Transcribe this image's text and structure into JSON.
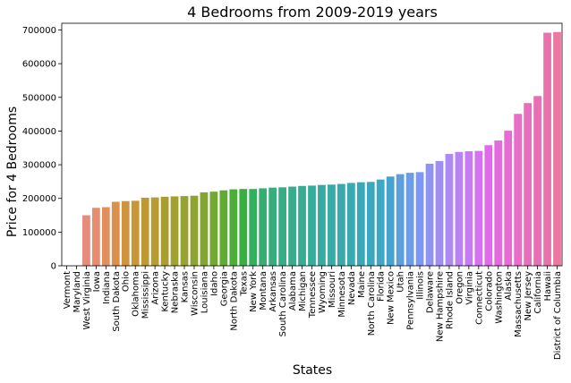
{
  "chart_data": {
    "type": "bar",
    "title": "4 Bedrooms from 2009-2019 years",
    "xlabel": "States",
    "ylabel": "Price for 4 Bedrooms",
    "ylim": [
      0,
      720000
    ],
    "yticks": [
      "0",
      "100000",
      "200000",
      "300000",
      "400000",
      "500000",
      "600000",
      "700000"
    ],
    "grid": false,
    "legend": "none",
    "categories": [
      "Vermont",
      "Maryland",
      "West Virginia",
      "Iowa",
      "Indiana",
      "South Dakota",
      "Ohio",
      "Oklahoma",
      "Mississippi",
      "Arizona",
      "Kentucky",
      "Nebraska",
      "Kansas",
      "Wisconsin",
      "Louisiana",
      "Idaho",
      "Georgia",
      "North Dakota",
      "Texas",
      "New York",
      "Montana",
      "Arkansas",
      "South Carolina",
      "Alabama",
      "Michigan",
      "Tennessee",
      "Wyoming",
      "Missouri",
      "Minnesota",
      "Nevada",
      "Maine",
      "North Carolina",
      "Florida",
      "New Mexico",
      "Utah",
      "Pennsylvania",
      "Illinois",
      "Delaware",
      "New Hampshire",
      "Rhode Island",
      "Oregon",
      "Virginia",
      "Connecticut",
      "Colorado",
      "Washington",
      "Alaska",
      "Massachusetts",
      "New Jersey",
      "California",
      "Hawaii",
      "District of Columbia"
    ],
    "values": [
      0,
      0,
      150000,
      172000,
      174000,
      190000,
      192000,
      193000,
      202000,
      203000,
      205000,
      206000,
      207000,
      208000,
      218000,
      220000,
      224000,
      227000,
      228000,
      228000,
      230000,
      232000,
      233000,
      235000,
      237000,
      238000,
      240000,
      241000,
      243000,
      246000,
      248000,
      249000,
      256000,
      265000,
      272000,
      276000,
      278000,
      303000,
      311000,
      332000,
      338000,
      340000,
      341000,
      358000,
      372000,
      401000,
      451000,
      483000,
      504000,
      692000,
      694000
    ],
    "colors": [
      "#ea8d94",
      "#e88c88",
      "#e78c7b",
      "#e58d6e",
      "#e38f5d",
      "#db904b",
      "#d0933e",
      "#c79636",
      "#be9831",
      "#b59b31",
      "#ab9e31",
      "#a2a031",
      "#98a231",
      "#8ea431",
      "#82a731",
      "#73a931",
      "#60ac31",
      "#4aae37",
      "#38b040",
      "#33b05e",
      "#34af71",
      "#35ae7b",
      "#35ad85",
      "#36ad8d",
      "#36ac94",
      "#36ac9a",
      "#37aba0",
      "#37aba5",
      "#38aaab",
      "#38aab1",
      "#39a9b7",
      "#3aa8be",
      "#3ca7c6",
      "#46a3d0",
      "#5c9fdb",
      "#6c9be8",
      "#7d97f2",
      "#8f93f2",
      "#9f8ff2",
      "#ad89f2",
      "#ba82f2",
      "#c77af2",
      "#d571f2",
      "#e06ae9",
      "#e56ade",
      "#e76bd3",
      "#e86cc8",
      "#e96dbf",
      "#e96fb5",
      "#ea72ac",
      "#ea78a2"
    ]
  }
}
